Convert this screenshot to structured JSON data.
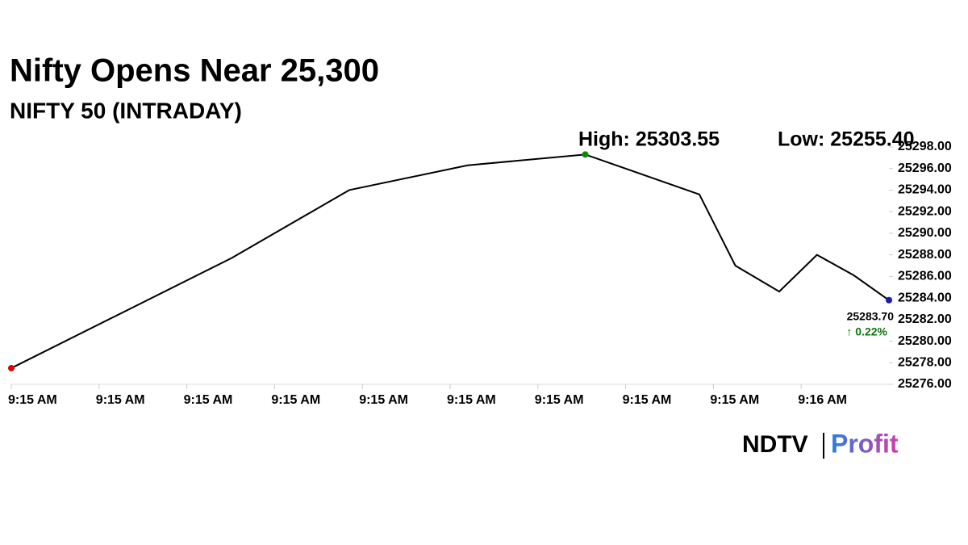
{
  "chart_data": {
    "type": "line",
    "title": "Nifty Opens Near 25,300",
    "subtitle": "NIFTY 50 (INTRADAY)",
    "high_label": "High: 25303.55",
    "low_label": "Low: 25255.40",
    "last_label": "25283.70",
    "change_label": "↑ 0.22%",
    "x": [
      0,
      2.51,
      3.85,
      5.2,
      6.54,
      7.84,
      8.25,
      8.75,
      9.18,
      9.6,
      10
    ],
    "values": [
      25277.5,
      25287.7,
      25294.0,
      25296.3,
      25297.3,
      25293.6,
      25287.0,
      25284.6,
      25288.0,
      25286.1,
      25283.8
    ],
    "color": "#000000",
    "start_color": "#e00000",
    "high_color": "#0a8a0a",
    "end_color": "#1a1ab0",
    "change_color": "#0a7a0a",
    "high_index": 4,
    "xlim": [
      0,
      10
    ],
    "xticks": [
      {
        "value": 0,
        "label": "9:15 AM"
      },
      {
        "value": 1,
        "label": "9:15 AM"
      },
      {
        "value": 2,
        "label": "9:15 AM"
      },
      {
        "value": 3,
        "label": "9:15 AM"
      },
      {
        "value": 4,
        "label": "9:15 AM"
      },
      {
        "value": 5,
        "label": "9:15 AM"
      },
      {
        "value": 6,
        "label": "9:15 AM"
      },
      {
        "value": 7,
        "label": "9:15 AM"
      },
      {
        "value": 8,
        "label": "9:15 AM"
      },
      {
        "value": 9,
        "label": "9:16 AM"
      }
    ],
    "ylim": [
      25276,
      25298
    ],
    "yticks": [
      {
        "value": 25276,
        "label": "25276.00"
      },
      {
        "value": 25278,
        "label": "25278.00"
      },
      {
        "value": 25280,
        "label": "25280.00"
      },
      {
        "value": 25282,
        "label": "25282.00"
      },
      {
        "value": 25284,
        "label": "25284.00"
      },
      {
        "value": 25286,
        "label": "25286.00"
      },
      {
        "value": 25288,
        "label": "25288.00"
      },
      {
        "value": 25290,
        "label": "25290.00"
      },
      {
        "value": 25292,
        "label": "25292.00"
      },
      {
        "value": 25294,
        "label": "25294.00"
      },
      {
        "value": 25296,
        "label": "25296.00"
      },
      {
        "value": 25298,
        "label": "25298.00"
      }
    ]
  },
  "logo": {
    "brand": "NDTV",
    "product": "Profit"
  }
}
